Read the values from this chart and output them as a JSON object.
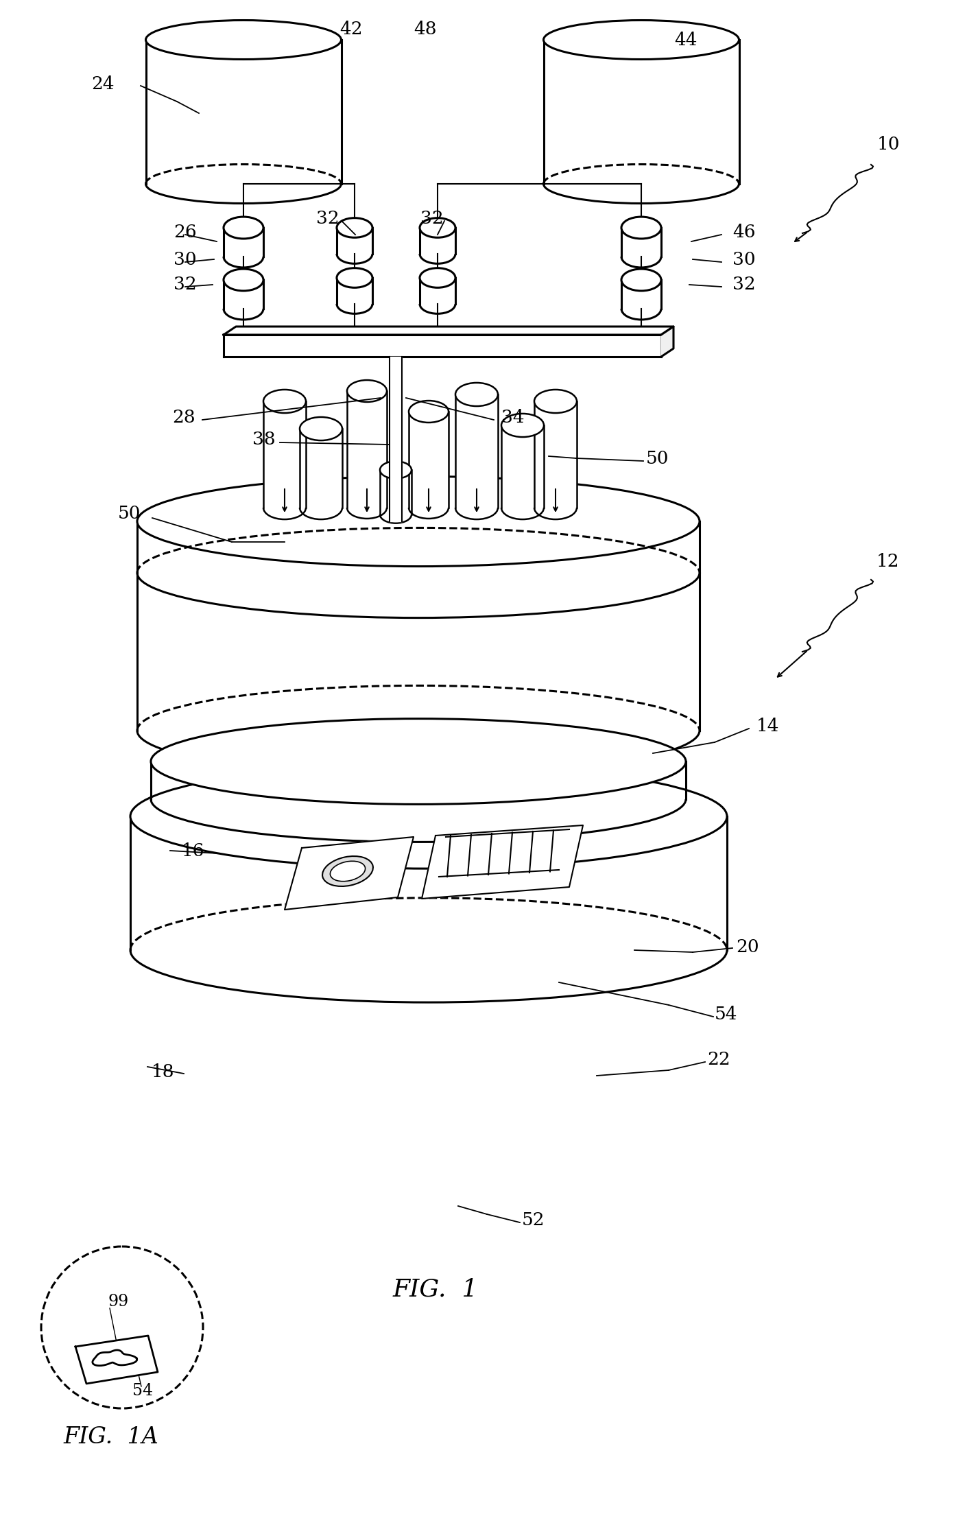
{
  "background_color": "#ffffff",
  "line_color": "#000000",
  "fig_width": 14.26,
  "fig_height": 22.23,
  "dpi": 100
}
